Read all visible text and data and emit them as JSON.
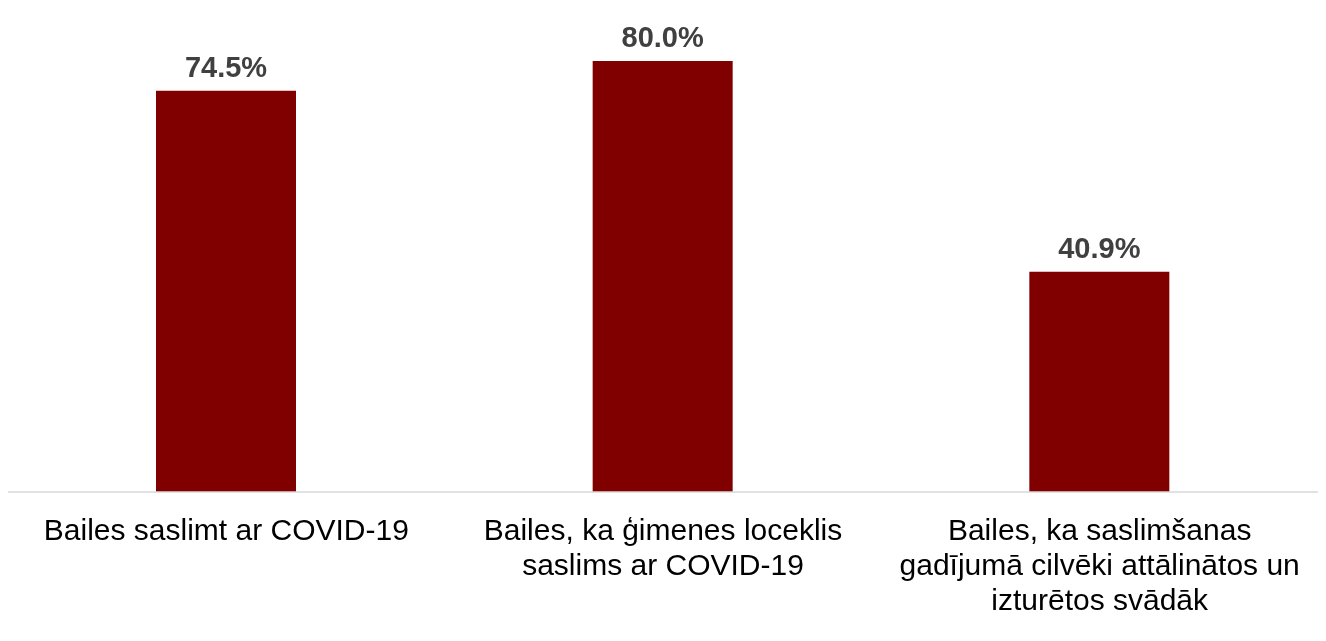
{
  "chart_data": {
    "type": "bar",
    "categories": [
      "Bailes saslimt ar COVID-19",
      "Bailes, ka ģimenes loceklis saslims ar COVID-19",
      "Bailes, ka saslimšanas gadījumā cilvēki attālinātos un izturētos svādāk"
    ],
    "values": [
      74.5,
      80.0,
      40.9
    ],
    "color": "#800000",
    "value_labels": [
      "74.5%",
      "80.0%",
      "40.9%"
    ],
    "grid": false,
    "legend": false
  }
}
